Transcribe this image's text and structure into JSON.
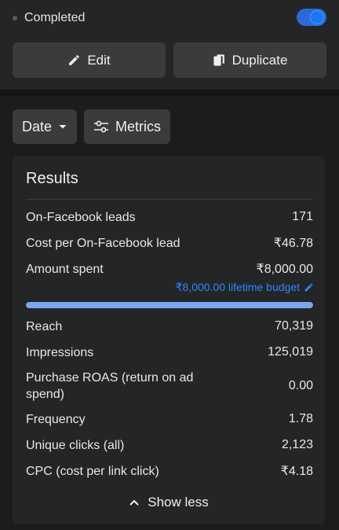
{
  "status": {
    "text": "Completed",
    "toggle_on": true
  },
  "actions": {
    "edit_label": "Edit",
    "duplicate_label": "Duplicate"
  },
  "filters": {
    "date_label": "Date",
    "metrics_label": "Metrics"
  },
  "results": {
    "title": "Results",
    "rows": [
      {
        "label": "On-Facebook leads",
        "value": "171"
      },
      {
        "label": "Cost per On-Facebook lead",
        "value": "₹46.78"
      },
      {
        "label": "Amount spent",
        "value": "₹8,000.00"
      },
      {
        "label": "Reach",
        "value": "70,319"
      },
      {
        "label": "Impressions",
        "value": "125,019"
      },
      {
        "label": "Purchase ROAS (return on ad spend)",
        "value": "0.00"
      },
      {
        "label": "Frequency",
        "value": "1.78"
      },
      {
        "label": "Unique clicks (all)",
        "value": "2,123"
      },
      {
        "label": "CPC (cost per link click)",
        "value": "₹4.18"
      }
    ],
    "budget_text": "₹8,000.00 lifetime budget",
    "budget_progress_fraction": 1.0,
    "show_less_label": "Show less"
  },
  "colors": {
    "accent": "#2d88ff",
    "progress": "#7aa7f2",
    "toggle": "#1877f2"
  }
}
